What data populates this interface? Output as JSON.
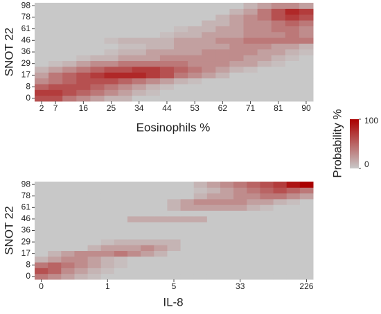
{
  "chart_data": [
    {
      "type": "heatmap",
      "x_label": "Eosinophils %",
      "y_label": "SNOT 22",
      "x_categories": [
        2,
        7,
        null,
        16,
        null,
        25,
        null,
        34,
        null,
        44,
        null,
        53,
        null,
        62,
        null,
        71,
        null,
        81,
        null,
        90
      ],
      "y_categories": [
        0,
        null,
        8,
        null,
        17,
        null,
        29,
        null,
        36,
        null,
        46,
        null,
        61,
        null,
        78,
        null,
        98
      ],
      "z": [
        [
          60,
          60,
          40,
          30,
          20,
          10,
          10,
          0,
          0,
          0,
          0,
          0,
          0,
          0,
          0,
          0,
          0,
          0,
          0,
          0
        ],
        [
          70,
          70,
          60,
          50,
          40,
          30,
          20,
          10,
          5,
          0,
          0,
          0,
          0,
          0,
          0,
          0,
          0,
          0,
          0,
          0
        ],
        [
          50,
          60,
          60,
          60,
          50,
          40,
          30,
          20,
          10,
          5,
          0,
          0,
          0,
          0,
          0,
          0,
          0,
          0,
          0,
          0
        ],
        [
          30,
          40,
          50,
          60,
          60,
          60,
          50,
          40,
          30,
          20,
          10,
          5,
          0,
          0,
          0,
          0,
          0,
          0,
          0,
          0
        ],
        [
          20,
          40,
          50,
          60,
          70,
          80,
          80,
          80,
          70,
          60,
          40,
          30,
          20,
          10,
          0,
          0,
          0,
          0,
          0,
          0
        ],
        [
          10,
          20,
          30,
          40,
          50,
          60,
          60,
          70,
          70,
          60,
          50,
          40,
          30,
          20,
          10,
          5,
          0,
          0,
          0,
          0
        ],
        [
          0,
          5,
          10,
          20,
          30,
          30,
          40,
          40,
          40,
          40,
          40,
          30,
          30,
          30,
          20,
          20,
          10,
          5,
          0,
          0
        ],
        [
          0,
          0,
          0,
          5,
          10,
          10,
          20,
          20,
          20,
          30,
          30,
          30,
          30,
          30,
          30,
          20,
          20,
          10,
          5,
          0
        ],
        [
          0,
          0,
          0,
          0,
          0,
          5,
          10,
          10,
          20,
          20,
          20,
          20,
          30,
          30,
          30,
          30,
          20,
          20,
          10,
          5
        ],
        [
          0,
          0,
          0,
          0,
          0,
          0,
          5,
          5,
          10,
          10,
          20,
          20,
          20,
          20,
          30,
          30,
          30,
          20,
          20,
          10
        ],
        [
          0,
          0,
          0,
          0,
          0,
          5,
          10,
          10,
          10,
          10,
          20,
          20,
          20,
          30,
          30,
          40,
          40,
          40,
          40,
          40
        ],
        [
          0,
          0,
          0,
          0,
          0,
          0,
          0,
          0,
          0,
          5,
          10,
          10,
          20,
          20,
          20,
          30,
          30,
          30,
          40,
          30
        ],
        [
          0,
          0,
          0,
          0,
          0,
          0,
          0,
          0,
          0,
          0,
          5,
          10,
          10,
          20,
          20,
          30,
          30,
          40,
          40,
          30
        ],
        [
          0,
          0,
          0,
          0,
          0,
          0,
          0,
          0,
          0,
          0,
          0,
          0,
          10,
          10,
          20,
          30,
          30,
          40,
          50,
          40
        ],
        [
          0,
          0,
          0,
          0,
          0,
          0,
          0,
          0,
          0,
          0,
          0,
          0,
          0,
          10,
          20,
          30,
          40,
          60,
          70,
          60
        ],
        [
          0,
          0,
          0,
          0,
          0,
          0,
          0,
          0,
          0,
          0,
          0,
          0,
          0,
          0,
          10,
          20,
          40,
          60,
          80,
          70
        ],
        [
          0,
          0,
          0,
          0,
          0,
          0,
          0,
          0,
          0,
          0,
          0,
          0,
          0,
          0,
          0,
          10,
          20,
          30,
          30,
          20
        ]
      ]
    },
    {
      "type": "heatmap",
      "x_label": "IL-8",
      "y_label": "SNOT 22",
      "x_categories": [
        0,
        null,
        null,
        null,
        null,
        1,
        null,
        null,
        null,
        null,
        5,
        null,
        null,
        null,
        null,
        33,
        null,
        null,
        null,
        null,
        226
      ],
      "y_categories": [
        0,
        null,
        8,
        null,
        17,
        null,
        29,
        null,
        36,
        null,
        46,
        null,
        61,
        null,
        78,
        null,
        98
      ],
      "z": [
        [
          40,
          30,
          20,
          10,
          5,
          0,
          0,
          0,
          0,
          0,
          0,
          0,
          0,
          0,
          0,
          0,
          0,
          0,
          0,
          0,
          0
        ],
        [
          60,
          50,
          30,
          20,
          10,
          5,
          0,
          0,
          0,
          0,
          0,
          0,
          0,
          0,
          0,
          0,
          0,
          0,
          0,
          0,
          0
        ],
        [
          40,
          50,
          40,
          30,
          20,
          10,
          5,
          0,
          0,
          0,
          0,
          0,
          0,
          0,
          0,
          0,
          0,
          0,
          0,
          0,
          0
        ],
        [
          10,
          20,
          30,
          30,
          20,
          10,
          5,
          0,
          0,
          0,
          0,
          0,
          0,
          0,
          0,
          0,
          0,
          0,
          0,
          0,
          0
        ],
        [
          0,
          10,
          20,
          30,
          30,
          30,
          40,
          30,
          20,
          10,
          0,
          0,
          0,
          0,
          0,
          0,
          0,
          0,
          0,
          0,
          0
        ],
        [
          0,
          0,
          0,
          0,
          10,
          20,
          20,
          20,
          30,
          20,
          10,
          0,
          0,
          0,
          0,
          0,
          0,
          0,
          0,
          0,
          0
        ],
        [
          0,
          0,
          0,
          0,
          0,
          5,
          10,
          10,
          10,
          10,
          10,
          0,
          0,
          0,
          0,
          0,
          0,
          0,
          0,
          0,
          0
        ],
        [
          0,
          0,
          0,
          0,
          0,
          0,
          0,
          0,
          0,
          0,
          0,
          0,
          0,
          0,
          0,
          0,
          0,
          0,
          0,
          0,
          0
        ],
        [
          0,
          0,
          0,
          0,
          0,
          0,
          0,
          0,
          0,
          0,
          0,
          0,
          0,
          0,
          0,
          0,
          0,
          0,
          0,
          0,
          0
        ],
        [
          0,
          0,
          0,
          0,
          0,
          0,
          0,
          0,
          0,
          0,
          0,
          0,
          0,
          0,
          0,
          0,
          0,
          0,
          0,
          0,
          0
        ],
        [
          0,
          0,
          0,
          0,
          0,
          0,
          0,
          15,
          15,
          15,
          15,
          15,
          15,
          0,
          0,
          0,
          0,
          0,
          0,
          0,
          0
        ],
        [
          0,
          0,
          0,
          0,
          0,
          0,
          0,
          0,
          0,
          0,
          0,
          0,
          0,
          0,
          0,
          0,
          0,
          0,
          0,
          0,
          0
        ],
        [
          0,
          0,
          0,
          0,
          0,
          0,
          0,
          0,
          0,
          0,
          10,
          20,
          20,
          20,
          20,
          20,
          10,
          5,
          0,
          0,
          0
        ],
        [
          0,
          0,
          0,
          0,
          0,
          0,
          0,
          0,
          0,
          0,
          10,
          20,
          30,
          30,
          30,
          30,
          20,
          20,
          10,
          5,
          0
        ],
        [
          0,
          0,
          0,
          0,
          0,
          0,
          0,
          0,
          0,
          0,
          0,
          0,
          10,
          20,
          20,
          30,
          30,
          40,
          40,
          30,
          20
        ],
        [
          0,
          0,
          0,
          0,
          0,
          0,
          0,
          0,
          0,
          0,
          0,
          0,
          5,
          10,
          20,
          30,
          40,
          50,
          60,
          50,
          40
        ],
        [
          0,
          0,
          0,
          0,
          0,
          0,
          0,
          0,
          0,
          0,
          0,
          0,
          10,
          20,
          30,
          40,
          50,
          60,
          70,
          90,
          100
        ]
      ]
    }
  ],
  "colorbar": {
    "title": "Probability %",
    "lim": [
      0,
      100
    ],
    "ticks": [
      0,
      100
    ],
    "low_color": "#c8c8c8",
    "high_color": "#aa0000"
  }
}
